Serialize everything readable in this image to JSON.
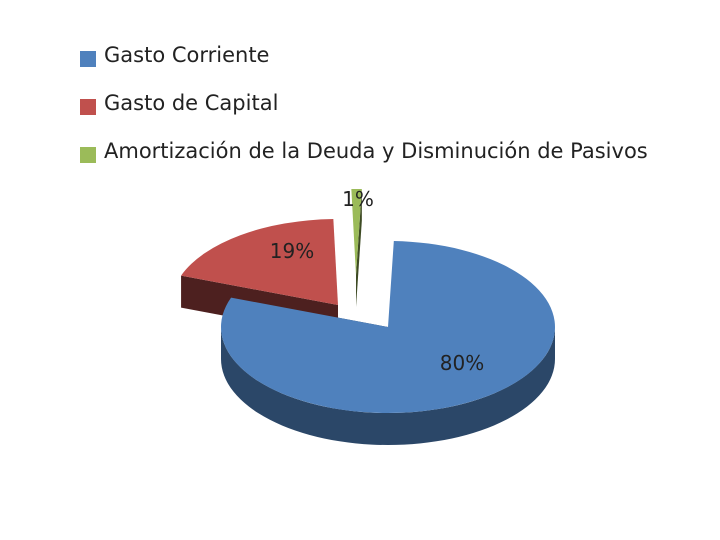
{
  "chart_data": {
    "type": "pie",
    "title": "",
    "series": [
      {
        "name": "",
        "categories": [
          "Gasto Corriente",
          "Gasto de Capital",
          "Amortización de la Deuda y Disminución de Pasivos"
        ],
        "values": [
          80,
          19,
          1
        ],
        "labels": [
          "80%",
          "19%",
          "1%"
        ],
        "colors": [
          "#4f81bd",
          "#c0504d",
          "#9bbb59"
        ]
      }
    ],
    "legend": "top",
    "style": "3d-exploded"
  }
}
